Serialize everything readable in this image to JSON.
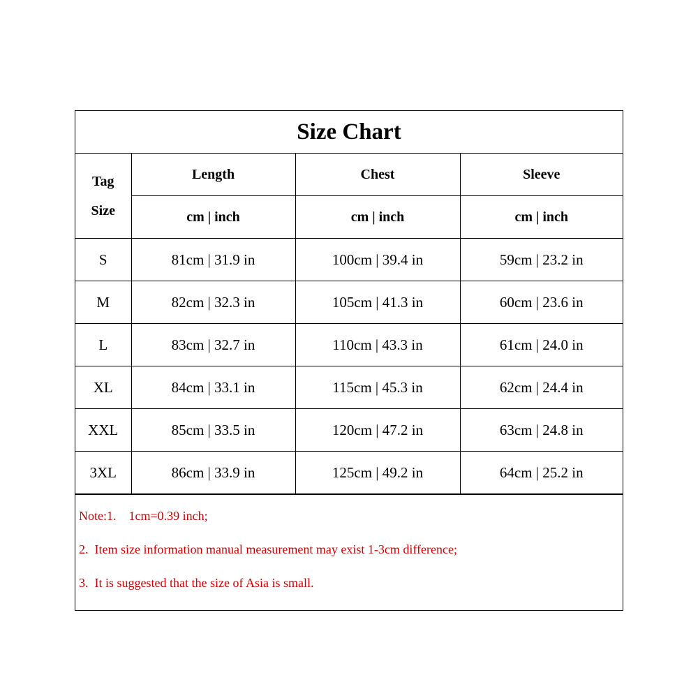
{
  "title": "Size Chart",
  "header": {
    "tag_size": [
      "Tag",
      "Size"
    ],
    "columns": [
      "Length",
      "Chest",
      "Sleeve"
    ],
    "unit_label": "cm | inch"
  },
  "rows": [
    {
      "size": "S",
      "length": "81cm | 31.9 in",
      "chest": "100cm | 39.4 in",
      "sleeve": "59cm | 23.2 in"
    },
    {
      "size": "M",
      "length": "82cm | 32.3 in",
      "chest": "105cm | 41.3 in",
      "sleeve": "60cm | 23.6 in"
    },
    {
      "size": "L",
      "length": "83cm | 32.7 in",
      "chest": "110cm | 43.3 in",
      "sleeve": "61cm | 24.0 in"
    },
    {
      "size": "XL",
      "length": "84cm | 33.1 in",
      "chest": "115cm | 45.3 in",
      "sleeve": "62cm | 24.4 in"
    },
    {
      "size": "XXL",
      "length": "85cm | 33.5 in",
      "chest": "120cm | 47.2 in",
      "sleeve": "63cm | 24.8 in"
    },
    {
      "size": "3XL",
      "length": "86cm | 33.9 in",
      "chest": "125cm | 49.2 in",
      "sleeve": "64cm | 25.2 in"
    }
  ],
  "notes": [
    "Note:1.    1cm=0.39 inch;",
    "2.  Item size information manual measurement may exist 1-3cm difference;",
    "3.  It is suggested that the size of Asia is small."
  ],
  "colors": {
    "note_text": "#d00000",
    "border": "#000000"
  }
}
